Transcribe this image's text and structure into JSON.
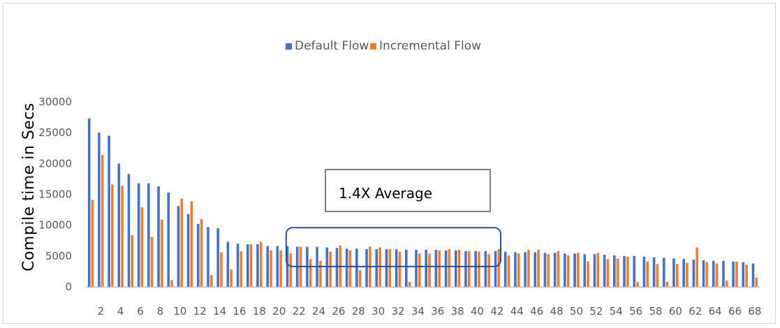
{
  "chart_data": {
    "type": "bar",
    "title": "",
    "xlabel": "",
    "ylabel": "Compile time in Secs",
    "ylim": [
      0,
      30000
    ],
    "yticks": [
      "0",
      "5000",
      "10000",
      "15000",
      "20000",
      "25000",
      "30000"
    ],
    "x_tick_labels": [
      "2",
      "4",
      "6",
      "8",
      "10",
      "12",
      "14",
      "16",
      "18",
      "20",
      "22",
      "24",
      "26",
      "28",
      "30",
      "32",
      "34",
      "36",
      "38",
      "40",
      "42",
      "44",
      "46",
      "48",
      "50",
      "52",
      "54",
      "56",
      "58",
      "60",
      "62",
      "64",
      "66",
      "68"
    ],
    "legend_position": "top",
    "grid": false,
    "categories": [
      1,
      2,
      3,
      4,
      5,
      6,
      7,
      8,
      9,
      10,
      11,
      12,
      13,
      14,
      15,
      16,
      17,
      18,
      19,
      20,
      21,
      22,
      23,
      24,
      25,
      26,
      27,
      28,
      29,
      30,
      31,
      32,
      33,
      34,
      35,
      36,
      37,
      38,
      39,
      40,
      41,
      42,
      43,
      44,
      45,
      46,
      47,
      48,
      49,
      50,
      51,
      52,
      53,
      54,
      55,
      56,
      57,
      58,
      59,
      60,
      61,
      62,
      63,
      64,
      65,
      66,
      67,
      68
    ],
    "series": [
      {
        "name": "Default Flow",
        "color": "#4472c4",
        "values": [
          27300,
          25000,
          24500,
          20000,
          18300,
          16800,
          16800,
          16300,
          15300,
          13100,
          11800,
          10200,
          9700,
          9500,
          7300,
          7000,
          6900,
          6900,
          6600,
          6600,
          6600,
          6500,
          6500,
          6500,
          6400,
          6300,
          6200,
          6200,
          6100,
          6100,
          6100,
          6100,
          6000,
          6000,
          6000,
          6000,
          5900,
          5900,
          5800,
          5800,
          5800,
          5800,
          5700,
          5600,
          5600,
          5600,
          5500,
          5500,
          5400,
          5400,
          5300,
          5300,
          5200,
          5100,
          5000,
          5000,
          4900,
          4800,
          4700,
          4600,
          4500,
          4400,
          4300,
          4200,
          4200,
          4100,
          4000,
          3800
        ]
      },
      {
        "name": "Incremental Flow",
        "color": "#ed7d31",
        "values": [
          14100,
          21400,
          16600,
          16400,
          8400,
          12900,
          8100,
          10900,
          1100,
          14300,
          13900,
          11000,
          1900,
          5600,
          2800,
          5800,
          6900,
          7300,
          5900,
          5900,
          5400,
          6500,
          4500,
          4200,
          5700,
          6700,
          5900,
          2700,
          6500,
          6400,
          6100,
          5700,
          800,
          5400,
          5400,
          5900,
          6100,
          6000,
          5800,
          5700,
          5300,
          6100,
          5100,
          5400,
          6000,
          6000,
          5300,
          5800,
          5100,
          5500,
          4100,
          5500,
          4500,
          4600,
          4900,
          800,
          4100,
          3700,
          800,
          3700,
          3900,
          6400,
          4000,
          3800,
          1000,
          4100,
          3600,
          1500
        ]
      }
    ],
    "annotations": [
      {
        "text": "1.4X Average",
        "start_category": 21,
        "end_category": 42,
        "y_range": [
          3300,
          9600
        ]
      }
    ]
  }
}
